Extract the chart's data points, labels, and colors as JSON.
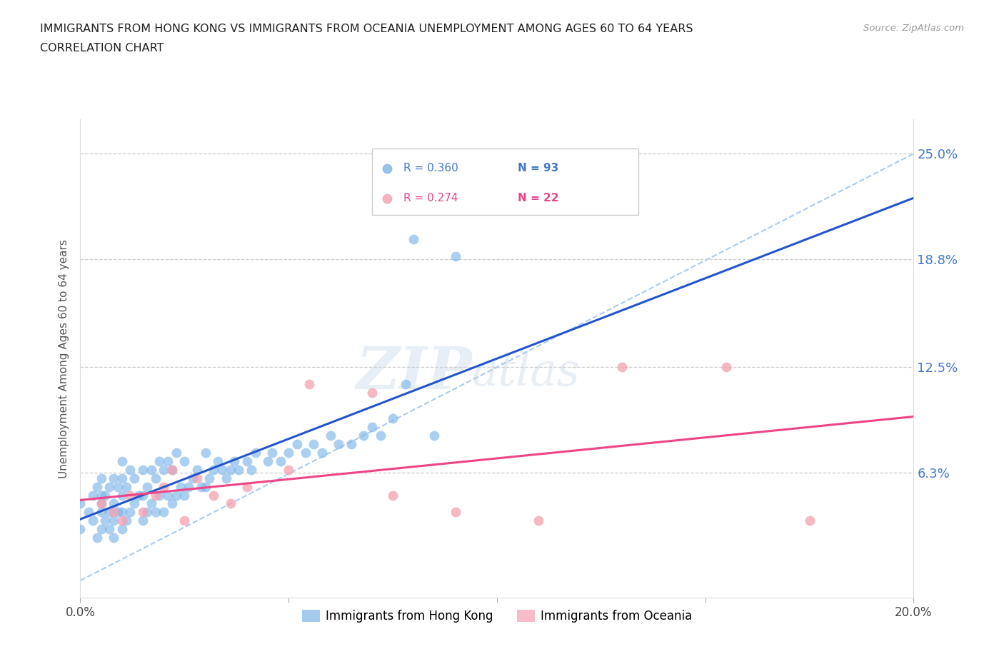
{
  "title_line1": "IMMIGRANTS FROM HONG KONG VS IMMIGRANTS FROM OCEANIA UNEMPLOYMENT AMONG AGES 60 TO 64 YEARS",
  "title_line2": "CORRELATION CHART",
  "source_text": "Source: ZipAtlas.com",
  "ylabel": "Unemployment Among Ages 60 to 64 years",
  "xlim": [
    0.0,
    0.2
  ],
  "ylim": [
    -0.01,
    0.27
  ],
  "yticks": [
    0.063,
    0.125,
    0.188,
    0.25
  ],
  "ytick_labels": [
    "6.3%",
    "12.5%",
    "18.8%",
    "25.0%"
  ],
  "xticks": [
    0.0,
    0.05,
    0.1,
    0.15,
    0.2
  ],
  "xtick_labels": [
    "0.0%",
    "",
    "",
    "",
    "20.0%"
  ],
  "hk_color": "#7EB6E8",
  "oc_color": "#F5A0B0",
  "hk_line_color": "#2255CC",
  "oc_line_color": "#EE4488",
  "diag_color": "#AACCEE",
  "r_hk": "0.360",
  "n_hk": "93",
  "r_oc": "0.274",
  "n_oc": "22",
  "legend_label_hk": "Immigrants from Hong Kong",
  "legend_label_oc": "Immigrants from Oceania",
  "hk_scatter_x": [
    0.0,
    0.0,
    0.002,
    0.003,
    0.003,
    0.004,
    0.004,
    0.005,
    0.005,
    0.005,
    0.005,
    0.005,
    0.006,
    0.006,
    0.007,
    0.007,
    0.007,
    0.008,
    0.008,
    0.008,
    0.008,
    0.009,
    0.009,
    0.01,
    0.01,
    0.01,
    0.01,
    0.01,
    0.011,
    0.011,
    0.012,
    0.012,
    0.013,
    0.013,
    0.014,
    0.015,
    0.015,
    0.015,
    0.016,
    0.016,
    0.017,
    0.017,
    0.018,
    0.018,
    0.019,
    0.019,
    0.02,
    0.02,
    0.021,
    0.021,
    0.022,
    0.022,
    0.023,
    0.023,
    0.024,
    0.025,
    0.025,
    0.026,
    0.027,
    0.028,
    0.029,
    0.03,
    0.03,
    0.031,
    0.032,
    0.033,
    0.034,
    0.035,
    0.036,
    0.037,
    0.038,
    0.04,
    0.041,
    0.042,
    0.045,
    0.046,
    0.048,
    0.05,
    0.052,
    0.054,
    0.056,
    0.058,
    0.06,
    0.062,
    0.065,
    0.068,
    0.07,
    0.072,
    0.075,
    0.078,
    0.08,
    0.085,
    0.09
  ],
  "hk_scatter_y": [
    0.03,
    0.045,
    0.04,
    0.035,
    0.05,
    0.025,
    0.055,
    0.03,
    0.04,
    0.045,
    0.05,
    0.06,
    0.035,
    0.05,
    0.03,
    0.04,
    0.055,
    0.025,
    0.035,
    0.045,
    0.06,
    0.04,
    0.055,
    0.03,
    0.04,
    0.05,
    0.06,
    0.07,
    0.035,
    0.055,
    0.04,
    0.065,
    0.045,
    0.06,
    0.05,
    0.035,
    0.05,
    0.065,
    0.04,
    0.055,
    0.045,
    0.065,
    0.04,
    0.06,
    0.05,
    0.07,
    0.04,
    0.065,
    0.05,
    0.07,
    0.045,
    0.065,
    0.05,
    0.075,
    0.055,
    0.05,
    0.07,
    0.055,
    0.06,
    0.065,
    0.055,
    0.055,
    0.075,
    0.06,
    0.065,
    0.07,
    0.065,
    0.06,
    0.065,
    0.07,
    0.065,
    0.07,
    0.065,
    0.075,
    0.07,
    0.075,
    0.07,
    0.075,
    0.08,
    0.075,
    0.08,
    0.075,
    0.085,
    0.08,
    0.08,
    0.085,
    0.09,
    0.085,
    0.095,
    0.115,
    0.2,
    0.085,
    0.19
  ],
  "oc_scatter_x": [
    0.005,
    0.008,
    0.01,
    0.012,
    0.015,
    0.018,
    0.02,
    0.022,
    0.025,
    0.028,
    0.032,
    0.036,
    0.04,
    0.05,
    0.055,
    0.07,
    0.075,
    0.09,
    0.11,
    0.13,
    0.155,
    0.175
  ],
  "oc_scatter_y": [
    0.045,
    0.04,
    0.035,
    0.05,
    0.04,
    0.05,
    0.055,
    0.065,
    0.035,
    0.06,
    0.05,
    0.045,
    0.055,
    0.065,
    0.115,
    0.11,
    0.05,
    0.04,
    0.035,
    0.125,
    0.125,
    0.035
  ]
}
